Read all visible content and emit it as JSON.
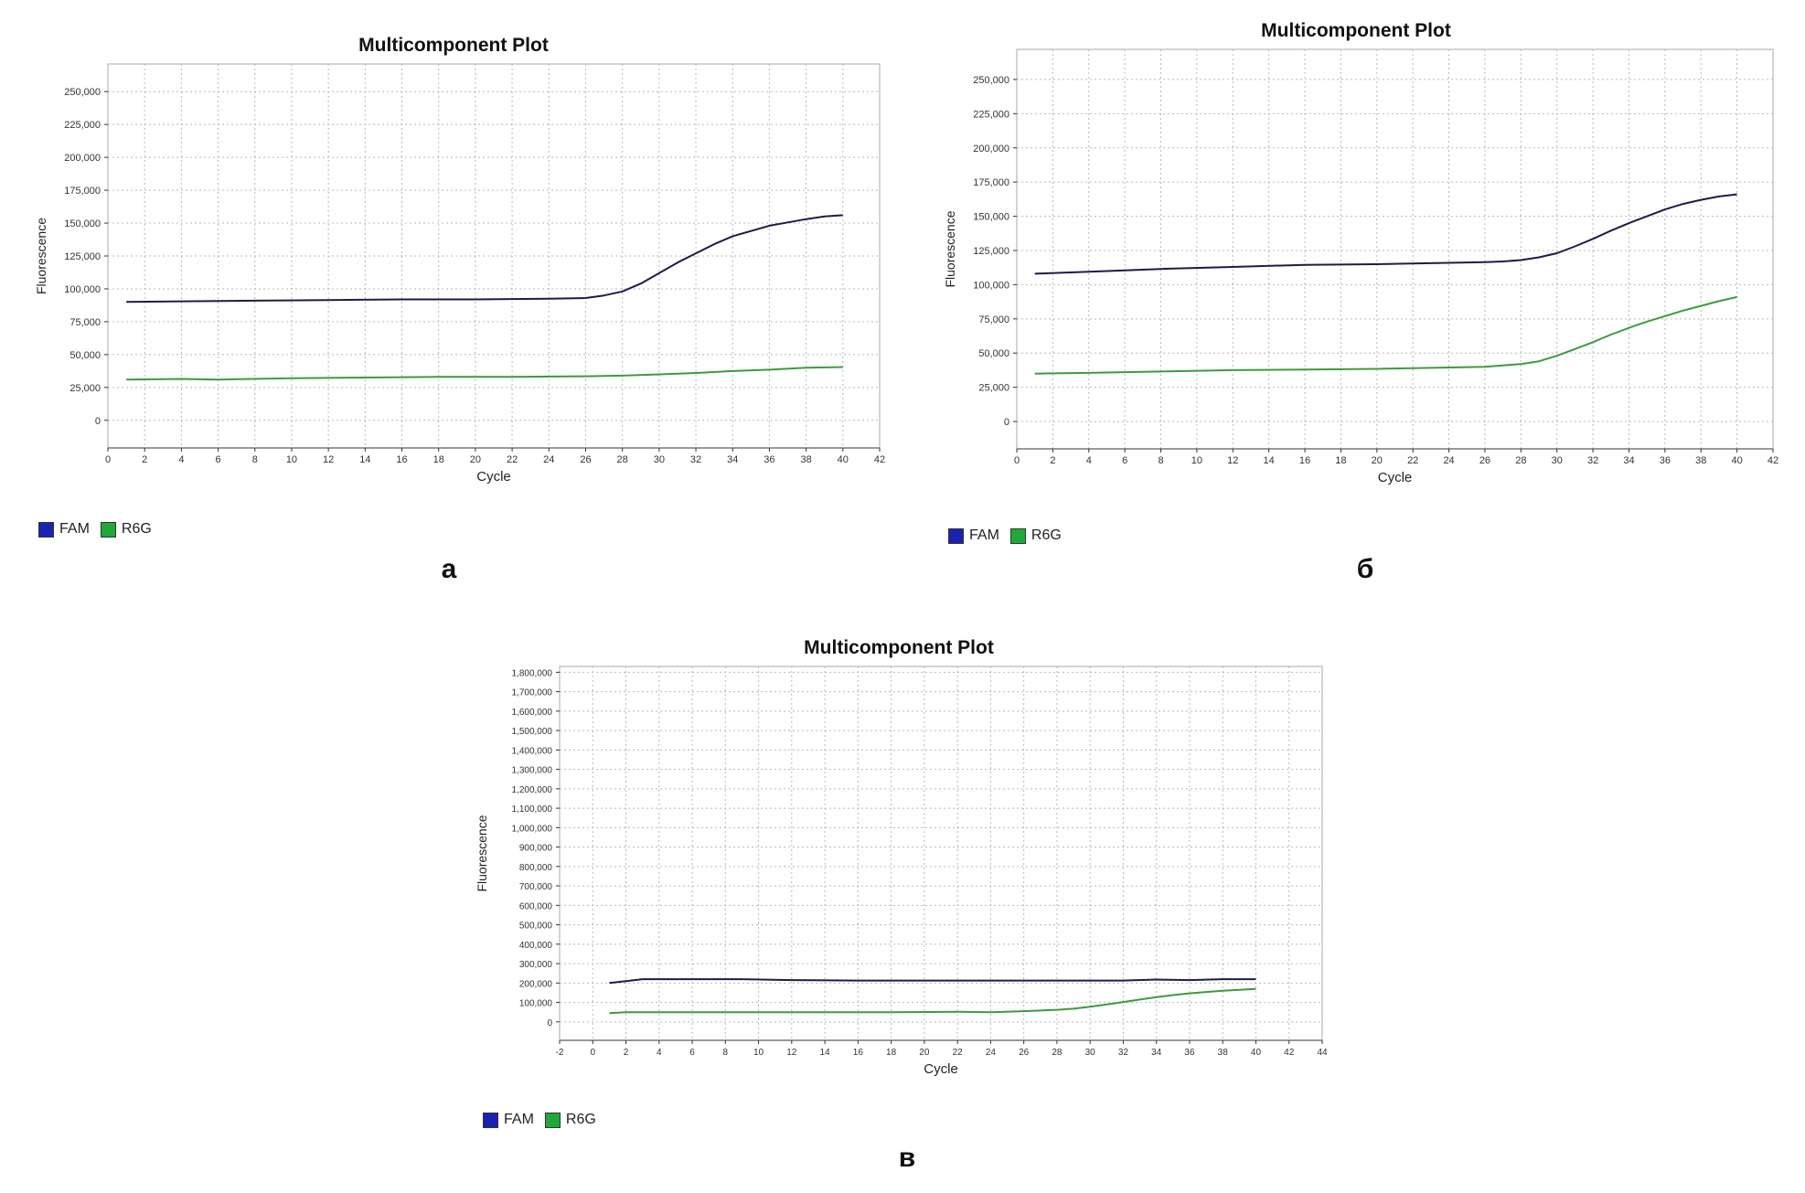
{
  "colors": {
    "FAM_line": "#1c1c48",
    "R6G_line": "#3f9a3f",
    "FAM_swatch": "#1a22b0",
    "R6G_swatch": "#22a83a",
    "grid": "#b8b8b8"
  },
  "chart_data": [
    {
      "id": "a",
      "type": "line",
      "panel_label": "а",
      "title": "Multicomponent Plot",
      "xlabel": "Cycle",
      "ylabel": "Fluorescence",
      "xlim": [
        0,
        42
      ],
      "ylim": [
        -21000,
        271000
      ],
      "xticks": [
        0,
        2,
        4,
        6,
        8,
        10,
        12,
        14,
        16,
        18,
        20,
        22,
        24,
        26,
        28,
        30,
        32,
        34,
        36,
        38,
        40,
        42
      ],
      "yticks": [
        0,
        25000,
        50000,
        75000,
        100000,
        125000,
        150000,
        175000,
        200000,
        225000,
        250000
      ],
      "ytick_labels": [
        "0",
        "25,000",
        "50,000",
        "75,000",
        "100,000",
        "125,000",
        "150,000",
        "175,000",
        "200,000",
        "225,000",
        "250,000"
      ],
      "grid": true,
      "legend": [
        "FAM",
        "R6G"
      ],
      "legend_placement": "bottom-left",
      "series": [
        {
          "name": "FAM",
          "x": [
            1,
            4,
            8,
            12,
            16,
            20,
            24,
            26,
            27,
            28,
            29,
            30,
            31,
            32,
            33,
            34,
            35,
            36,
            37,
            38,
            39,
            40
          ],
          "y": [
            90000,
            90500,
            91000,
            91500,
            92000,
            92000,
            92500,
            93000,
            95000,
            98000,
            104000,
            112000,
            120000,
            127000,
            134000,
            140000,
            144000,
            148000,
            150500,
            153000,
            155000,
            156000
          ]
        },
        {
          "name": "R6G",
          "x": [
            1,
            4,
            6,
            10,
            14,
            18,
            22,
            26,
            28,
            30,
            32,
            34,
            36,
            38,
            40
          ],
          "y": [
            31000,
            31500,
            31000,
            32000,
            32500,
            33000,
            33000,
            33500,
            34000,
            35000,
            36000,
            37500,
            38500,
            40000,
            40500
          ]
        }
      ]
    },
    {
      "id": "b",
      "type": "line",
      "panel_label": "б",
      "title": "Multicomponent Plot",
      "xlabel": "Cycle",
      "ylabel": "Fluorescence",
      "xlim": [
        0,
        42
      ],
      "ylim": [
        -20000,
        272000
      ],
      "xticks": [
        0,
        2,
        4,
        6,
        8,
        10,
        12,
        14,
        16,
        18,
        20,
        22,
        24,
        26,
        28,
        30,
        32,
        34,
        36,
        38,
        40,
        42
      ],
      "yticks": [
        0,
        25000,
        50000,
        75000,
        100000,
        125000,
        150000,
        175000,
        200000,
        225000,
        250000
      ],
      "ytick_labels": [
        "0",
        "25,000",
        "50,000",
        "75,000",
        "100,000",
        "125,000",
        "150,000",
        "175,000",
        "200,000",
        "225,000",
        "250,000"
      ],
      "grid": true,
      "legend": [
        "FAM",
        "R6G"
      ],
      "legend_placement": "bottom-left",
      "series": [
        {
          "name": "FAM",
          "x": [
            1,
            4,
            8,
            12,
            16,
            20,
            24,
            26,
            27,
            28,
            29,
            30,
            31,
            32,
            33,
            34,
            35,
            36,
            37,
            38,
            39,
            40
          ],
          "y": [
            108000,
            109500,
            111500,
            113000,
            114500,
            115000,
            116000,
            116500,
            117000,
            118000,
            120000,
            123000,
            128000,
            133500,
            139500,
            145000,
            150000,
            155000,
            159000,
            162000,
            164500,
            166000
          ]
        },
        {
          "name": "R6G",
          "x": [
            1,
            4,
            8,
            12,
            16,
            20,
            24,
            26,
            27,
            28,
            29,
            30,
            31,
            32,
            33,
            34,
            35,
            36,
            37,
            38,
            39,
            40
          ],
          "y": [
            35000,
            35500,
            36500,
            37500,
            38000,
            38500,
            39500,
            40000,
            41000,
            42000,
            44000,
            48000,
            53000,
            58000,
            63500,
            68500,
            73000,
            77000,
            81000,
            84500,
            88000,
            91000
          ]
        }
      ]
    },
    {
      "id": "c",
      "type": "line",
      "panel_label": "в",
      "title": "Multicomponent Plot",
      "xlabel": "Cycle",
      "ylabel": "Fluorescence",
      "xlim": [
        -2,
        44
      ],
      "ylim": [
        -95000,
        1830000
      ],
      "xticks": [
        -2,
        0,
        2,
        4,
        6,
        8,
        10,
        12,
        14,
        16,
        18,
        20,
        22,
        24,
        26,
        28,
        30,
        32,
        34,
        36,
        38,
        40,
        42,
        44
      ],
      "yticks": [
        0,
        100000,
        200000,
        300000,
        400000,
        500000,
        600000,
        700000,
        800000,
        900000,
        1000000,
        1100000,
        1200000,
        1300000,
        1400000,
        1500000,
        1600000,
        1700000,
        1800000
      ],
      "ytick_labels": [
        "0",
        "100,000",
        "200,000",
        "300,000",
        "400,000",
        "500,000",
        "600,000",
        "700,000",
        "800,000",
        "900,000",
        "1,000,000",
        "1,100,000",
        "1,200,000",
        "1,300,000",
        "1,400,000",
        "1,500,000",
        "1,600,000",
        "1,700,000",
        "1,800,000"
      ],
      "grid": true,
      "legend": [
        "FAM",
        "R6G"
      ],
      "legend_placement": "bottom-left",
      "series": [
        {
          "name": "FAM",
          "x": [
            1,
            2,
            3,
            6,
            9,
            12,
            16,
            20,
            24,
            28,
            32,
            34,
            36,
            38,
            40
          ],
          "y": [
            200000,
            210000,
            220000,
            220000,
            220000,
            215000,
            213000,
            213000,
            213000,
            213000,
            213000,
            218000,
            215000,
            220000,
            220000
          ]
        },
        {
          "name": "R6G",
          "x": [
            1,
            2,
            6,
            10,
            14,
            18,
            22,
            24,
            26,
            28,
            29,
            30,
            31,
            32,
            33,
            34,
            35,
            36,
            37,
            38,
            39,
            40
          ],
          "y": [
            45000,
            50000,
            50000,
            50000,
            50000,
            50000,
            52000,
            50000,
            55000,
            62000,
            68000,
            78000,
            90000,
            102000,
            115000,
            127000,
            138000,
            147000,
            154000,
            160000,
            165000,
            170000
          ]
        }
      ]
    }
  ]
}
